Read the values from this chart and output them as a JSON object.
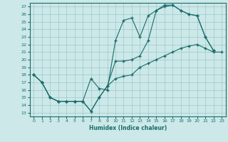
{
  "xlabel": "Humidex (Indice chaleur)",
  "bg_color": "#cce8e8",
  "grid_color": "#9ec8c8",
  "line_color": "#1a6b6b",
  "xlim": [
    -0.5,
    23.5
  ],
  "ylim": [
    12.5,
    27.5
  ],
  "xticks": [
    0,
    1,
    2,
    3,
    4,
    5,
    6,
    7,
    8,
    9,
    10,
    11,
    12,
    13,
    14,
    15,
    16,
    17,
    18,
    19,
    20,
    21,
    22,
    23
  ],
  "yticks": [
    13,
    14,
    15,
    16,
    17,
    18,
    19,
    20,
    21,
    22,
    23,
    24,
    25,
    26,
    27
  ],
  "line1_x": [
    0,
    1,
    2,
    3,
    4,
    5,
    6,
    7,
    8,
    9,
    10,
    11,
    12,
    13,
    14,
    15,
    16,
    17,
    18,
    19,
    20,
    21,
    22,
    23
  ],
  "line1_y": [
    18.0,
    17.0,
    15.0,
    14.5,
    14.5,
    14.5,
    14.5,
    13.2,
    15.0,
    16.5,
    17.5,
    17.8,
    18.0,
    19.0,
    19.5,
    20.0,
    20.5,
    21.0,
    21.5,
    21.8,
    22.0,
    21.5,
    21.0,
    21.0
  ],
  "line2_x": [
    0,
    1,
    2,
    3,
    4,
    5,
    6,
    7,
    8,
    9,
    10,
    11,
    12,
    13,
    14,
    15,
    16,
    17,
    18,
    19,
    20,
    21,
    22
  ],
  "line2_y": [
    18.0,
    17.0,
    15.0,
    14.5,
    14.5,
    14.5,
    14.5,
    17.5,
    16.2,
    16.0,
    22.5,
    25.2,
    25.5,
    23.0,
    25.8,
    26.5,
    27.2,
    27.2,
    26.5,
    26.0,
    25.8,
    23.0,
    21.2
  ],
  "line3_x": [
    0,
    1,
    2,
    3,
    4,
    5,
    6,
    7,
    8,
    9,
    10,
    11,
    12,
    13,
    14,
    15,
    16,
    17,
    18,
    19,
    20,
    21,
    22
  ],
  "line3_y": [
    18.0,
    17.0,
    15.0,
    14.5,
    14.5,
    14.5,
    14.5,
    13.2,
    15.0,
    16.5,
    19.8,
    19.8,
    20.0,
    20.5,
    22.5,
    26.5,
    27.0,
    27.2,
    26.5,
    26.0,
    25.8,
    23.0,
    21.2
  ]
}
